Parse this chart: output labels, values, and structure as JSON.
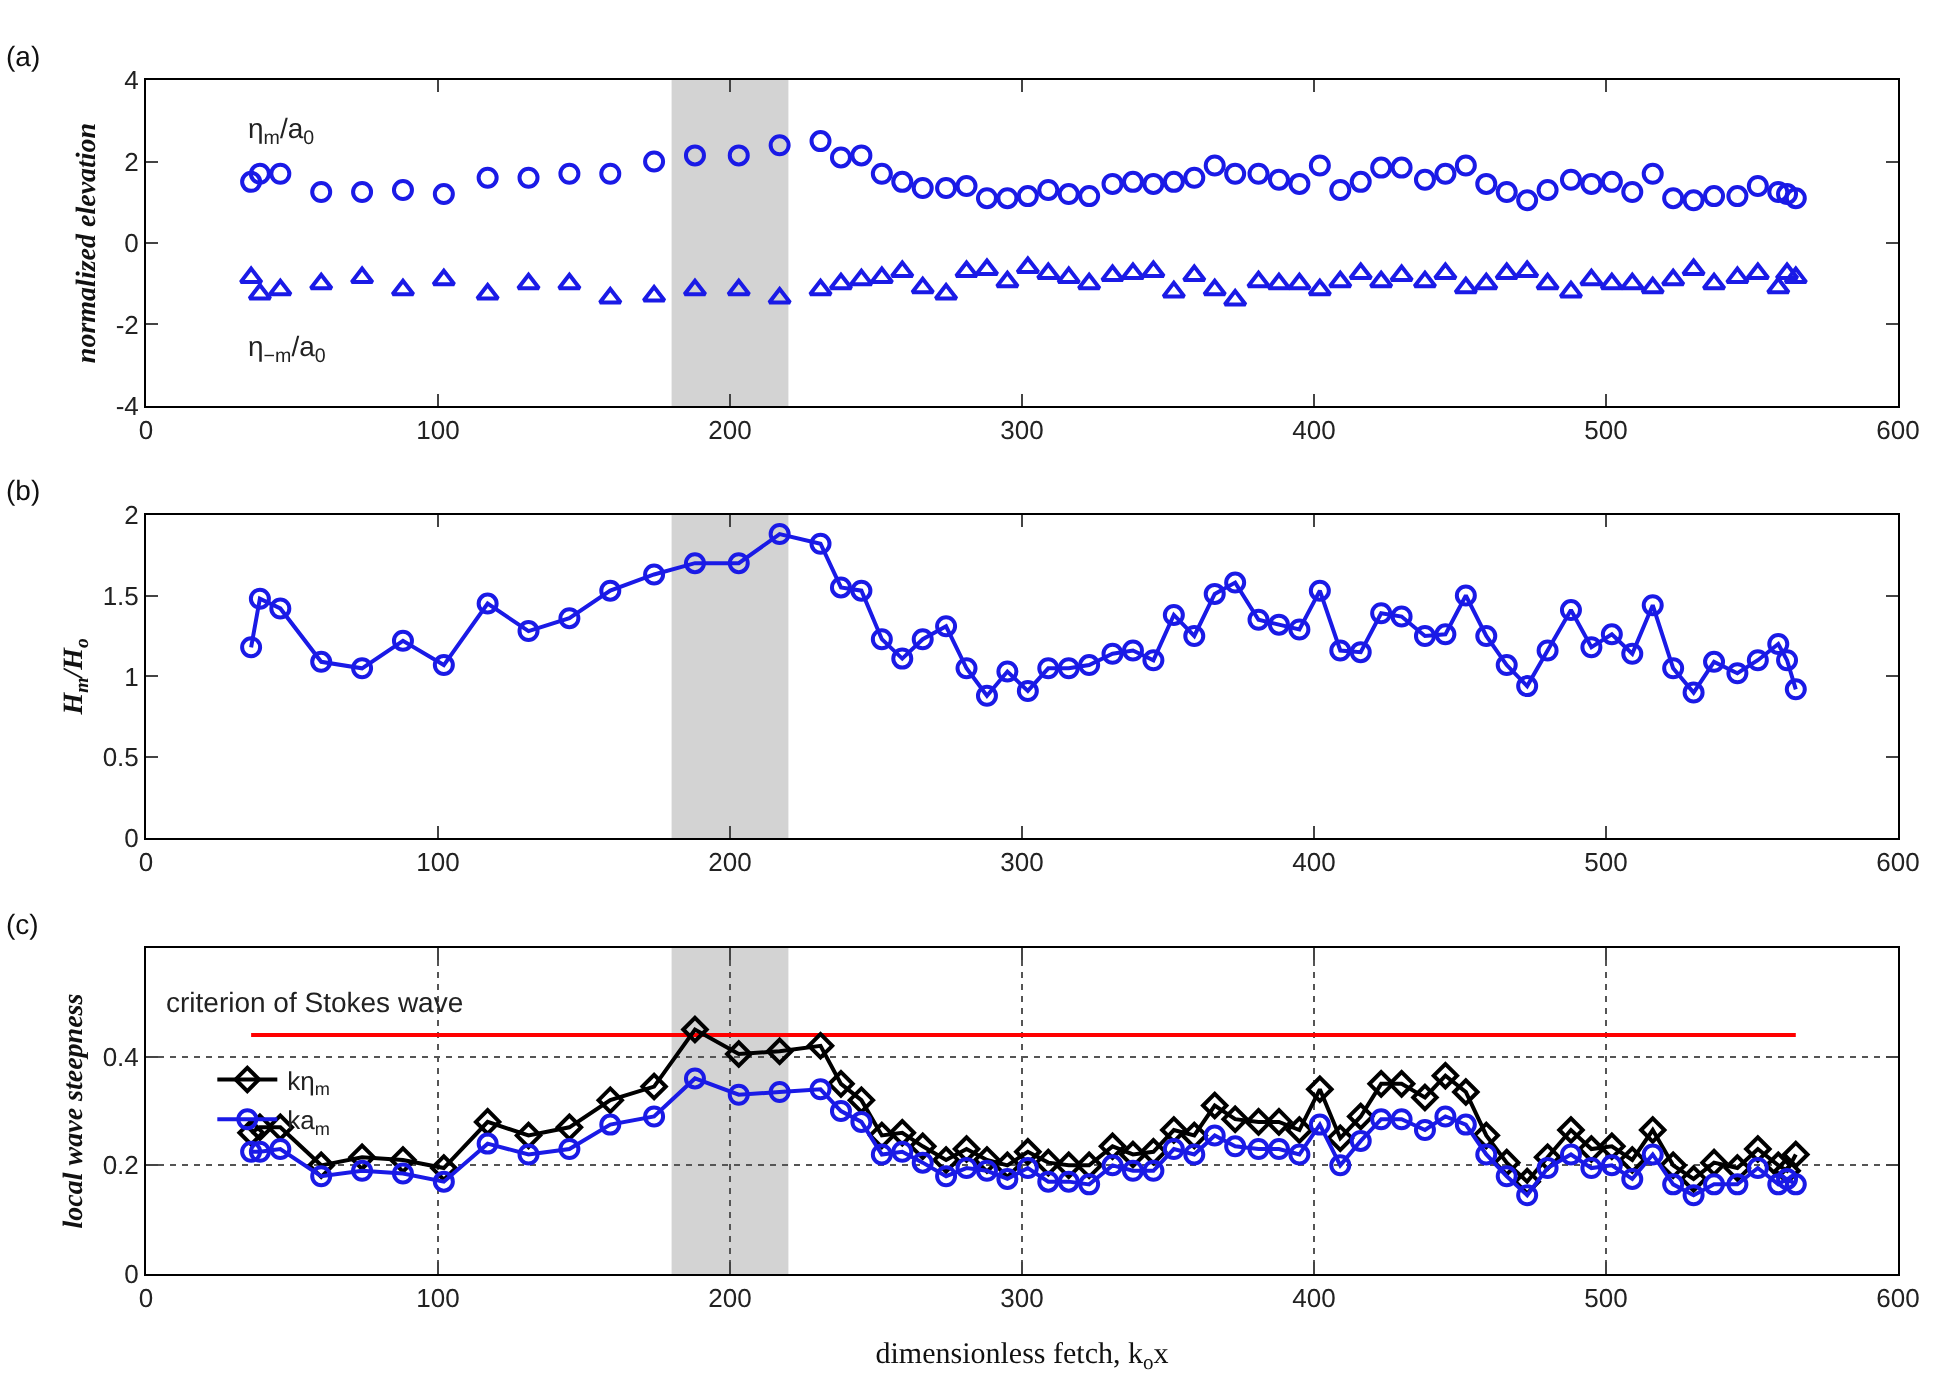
{
  "chart_data": [
    {
      "type": "scatter",
      "title": "(a)",
      "ylabel": "normalized elevation",
      "xlim": [
        0,
        600
      ],
      "xticks": [
        0,
        100,
        200,
        300,
        400,
        500,
        600
      ],
      "ylim": [
        -4,
        4
      ],
      "yticks": [
        -4,
        -2,
        0,
        2,
        4
      ],
      "grid": false,
      "legend": false,
      "x": [
        36,
        39,
        46,
        60,
        74,
        88,
        102,
        117,
        131,
        145,
        159,
        174,
        188,
        203,
        217,
        231,
        238,
        245,
        252,
        259,
        266,
        274,
        281,
        288,
        295,
        302,
        309,
        316,
        323,
        331,
        338,
        345,
        352,
        359,
        366,
        373,
        381,
        388,
        395,
        402,
        409,
        416,
        423,
        430,
        438,
        445,
        452,
        459,
        466,
        473,
        480,
        488,
        495,
        502,
        509,
        516,
        523,
        530,
        537,
        545,
        552,
        559,
        562,
        565
      ],
      "bands": [
        {
          "axis": "x",
          "from": 180,
          "to": 220,
          "color": "#d3d3d3"
        }
      ],
      "series": [
        {
          "name": "η$_{m}$/a$_{0}$",
          "color": "#1a1ae6",
          "marker": "circle",
          "values": [
            1.5,
            1.7,
            1.7,
            1.25,
            1.25,
            1.3,
            1.2,
            1.6,
            1.6,
            1.7,
            1.7,
            2.0,
            2.15,
            2.15,
            2.4,
            2.5,
            2.1,
            2.15,
            1.7,
            1.5,
            1.35,
            1.35,
            1.4,
            1.1,
            1.1,
            1.15,
            1.3,
            1.2,
            1.15,
            1.45,
            1.5,
            1.45,
            1.5,
            1.6,
            1.9,
            1.7,
            1.7,
            1.55,
            1.45,
            1.9,
            1.3,
            1.5,
            1.85,
            1.85,
            1.55,
            1.7,
            1.9,
            1.45,
            1.25,
            1.05,
            1.3,
            1.55,
            1.45,
            1.5,
            1.25,
            1.7,
            1.1,
            1.05,
            1.15,
            1.15,
            1.4,
            1.25,
            1.2,
            1.1
          ]
        },
        {
          "name": "η$_{−m}$/a$_{0}$",
          "color": "#1a1ae6",
          "marker": "triangle",
          "values": [
            -0.85,
            -1.25,
            -1.15,
            -1.0,
            -0.85,
            -1.15,
            -0.9,
            -1.25,
            -1.0,
            -1.0,
            -1.35,
            -1.3,
            -1.15,
            -1.15,
            -1.35,
            -1.15,
            -1.0,
            -0.9,
            -0.85,
            -0.7,
            -1.1,
            -1.25,
            -0.7,
            -0.65,
            -0.95,
            -0.6,
            -0.75,
            -0.85,
            -1.0,
            -0.8,
            -0.75,
            -0.7,
            -1.2,
            -0.8,
            -1.15,
            -1.4,
            -0.95,
            -1.0,
            -1.0,
            -1.15,
            -0.95,
            -0.75,
            -0.95,
            -0.8,
            -0.95,
            -0.75,
            -1.1,
            -1.0,
            -0.75,
            -0.7,
            -1.0,
            -1.2,
            -0.9,
            -1.0,
            -1.0,
            -1.1,
            -0.9,
            -0.65,
            -1.0,
            -0.85,
            -0.75,
            -1.1,
            -0.75,
            -0.85
          ]
        }
      ]
    },
    {
      "type": "line",
      "title": "(b)",
      "ylabel": "H$_{m}$/H$_{o}$",
      "xlim": [
        0,
        600
      ],
      "xticks": [
        0,
        100,
        200,
        300,
        400,
        500,
        600
      ],
      "ylim": [
        0,
        2
      ],
      "yticks": [
        0,
        0.5,
        1,
        1.5,
        2
      ],
      "grid": false,
      "legend": false,
      "x": [
        36,
        39,
        46,
        60,
        74,
        88,
        102,
        117,
        131,
        145,
        159,
        174,
        188,
        203,
        217,
        231,
        238,
        245,
        252,
        259,
        266,
        274,
        281,
        288,
        295,
        302,
        309,
        316,
        323,
        331,
        338,
        345,
        352,
        359,
        366,
        373,
        381,
        388,
        395,
        402,
        409,
        416,
        423,
        430,
        438,
        445,
        452,
        459,
        466,
        473,
        480,
        488,
        495,
        502,
        509,
        516,
        523,
        530,
        537,
        545,
        552,
        559,
        562,
        565
      ],
      "bands": [
        {
          "axis": "x",
          "from": 180,
          "to": 220,
          "color": "#d3d3d3"
        }
      ],
      "series": [
        {
          "color": "#1a1ae6",
          "marker": "circle",
          "values": [
            1.18,
            1.48,
            1.42,
            1.09,
            1.05,
            1.22,
            1.07,
            1.45,
            1.28,
            1.36,
            1.53,
            1.63,
            1.7,
            1.7,
            1.88,
            1.82,
            1.55,
            1.53,
            1.23,
            1.11,
            1.23,
            1.31,
            1.05,
            0.88,
            1.03,
            0.91,
            1.05,
            1.05,
            1.07,
            1.14,
            1.16,
            1.1,
            1.38,
            1.25,
            1.51,
            1.58,
            1.35,
            1.32,
            1.29,
            1.53,
            1.16,
            1.15,
            1.39,
            1.37,
            1.25,
            1.26,
            1.5,
            1.25,
            1.07,
            0.94,
            1.16,
            1.41,
            1.18,
            1.26,
            1.14,
            1.44,
            1.05,
            0.9,
            1.09,
            1.02,
            1.1,
            1.2,
            1.1,
            0.92
          ]
        }
      ]
    },
    {
      "type": "line",
      "title": "(c)",
      "ylabel": "local wave steepness",
      "xlabel": "dimensionless fetch, k$_{o}$x",
      "xlim": [
        0,
        600
      ],
      "xticks": [
        0,
        100,
        200,
        300,
        400,
        500,
        600
      ],
      "ylim": [
        0,
        0.6
      ],
      "yticks": [
        0,
        0.2,
        0.4
      ],
      "grid": true,
      "legend": "top left",
      "x": [
        36,
        39,
        46,
        60,
        74,
        88,
        102,
        117,
        131,
        145,
        159,
        174,
        188,
        203,
        217,
        231,
        238,
        245,
        252,
        259,
        266,
        274,
        281,
        288,
        295,
        302,
        309,
        316,
        323,
        331,
        338,
        345,
        352,
        359,
        366,
        373,
        381,
        388,
        395,
        402,
        409,
        416,
        423,
        430,
        438,
        445,
        452,
        459,
        466,
        473,
        480,
        488,
        495,
        502,
        509,
        516,
        523,
        530,
        537,
        545,
        552,
        559,
        562,
        565
      ],
      "bands": [
        {
          "axis": "x",
          "from": 180,
          "to": 220,
          "color": "#d3d3d3"
        }
      ],
      "series": [
        {
          "name": "criterion of Stokes wave",
          "color": "#ff0000",
          "marker": "none",
          "x": [
            36,
            565
          ],
          "values": [
            0.44,
            0.44
          ]
        },
        {
          "name": "kη$_{m}$",
          "color": "#000000",
          "marker": "diamond",
          "values": [
            0.26,
            0.27,
            0.27,
            0.2,
            0.215,
            0.21,
            0.195,
            0.28,
            0.255,
            0.27,
            0.32,
            0.345,
            0.45,
            0.405,
            0.41,
            0.42,
            0.35,
            0.32,
            0.255,
            0.26,
            0.235,
            0.21,
            0.23,
            0.21,
            0.2,
            0.225,
            0.205,
            0.2,
            0.2,
            0.235,
            0.22,
            0.225,
            0.265,
            0.255,
            0.31,
            0.285,
            0.28,
            0.28,
            0.265,
            0.34,
            0.25,
            0.29,
            0.35,
            0.35,
            0.325,
            0.365,
            0.335,
            0.255,
            0.205,
            0.17,
            0.215,
            0.265,
            0.23,
            0.235,
            0.21,
            0.265,
            0.2,
            0.175,
            0.205,
            0.195,
            0.23,
            0.2,
            0.19,
            0.22
          ]
        },
        {
          "name": "ka$_{m}$",
          "color": "#1a1ae6",
          "marker": "circle",
          "values": [
            0.225,
            0.225,
            0.23,
            0.18,
            0.19,
            0.185,
            0.17,
            0.24,
            0.22,
            0.23,
            0.275,
            0.29,
            0.36,
            0.33,
            0.335,
            0.34,
            0.3,
            0.28,
            0.22,
            0.225,
            0.205,
            0.18,
            0.195,
            0.19,
            0.175,
            0.195,
            0.17,
            0.17,
            0.165,
            0.2,
            0.19,
            0.19,
            0.23,
            0.22,
            0.255,
            0.235,
            0.23,
            0.23,
            0.22,
            0.275,
            0.2,
            0.245,
            0.285,
            0.285,
            0.265,
            0.29,
            0.275,
            0.22,
            0.18,
            0.145,
            0.195,
            0.22,
            0.195,
            0.2,
            0.175,
            0.22,
            0.165,
            0.145,
            0.165,
            0.165,
            0.195,
            0.165,
            0.175,
            0.165
          ]
        }
      ]
    }
  ]
}
